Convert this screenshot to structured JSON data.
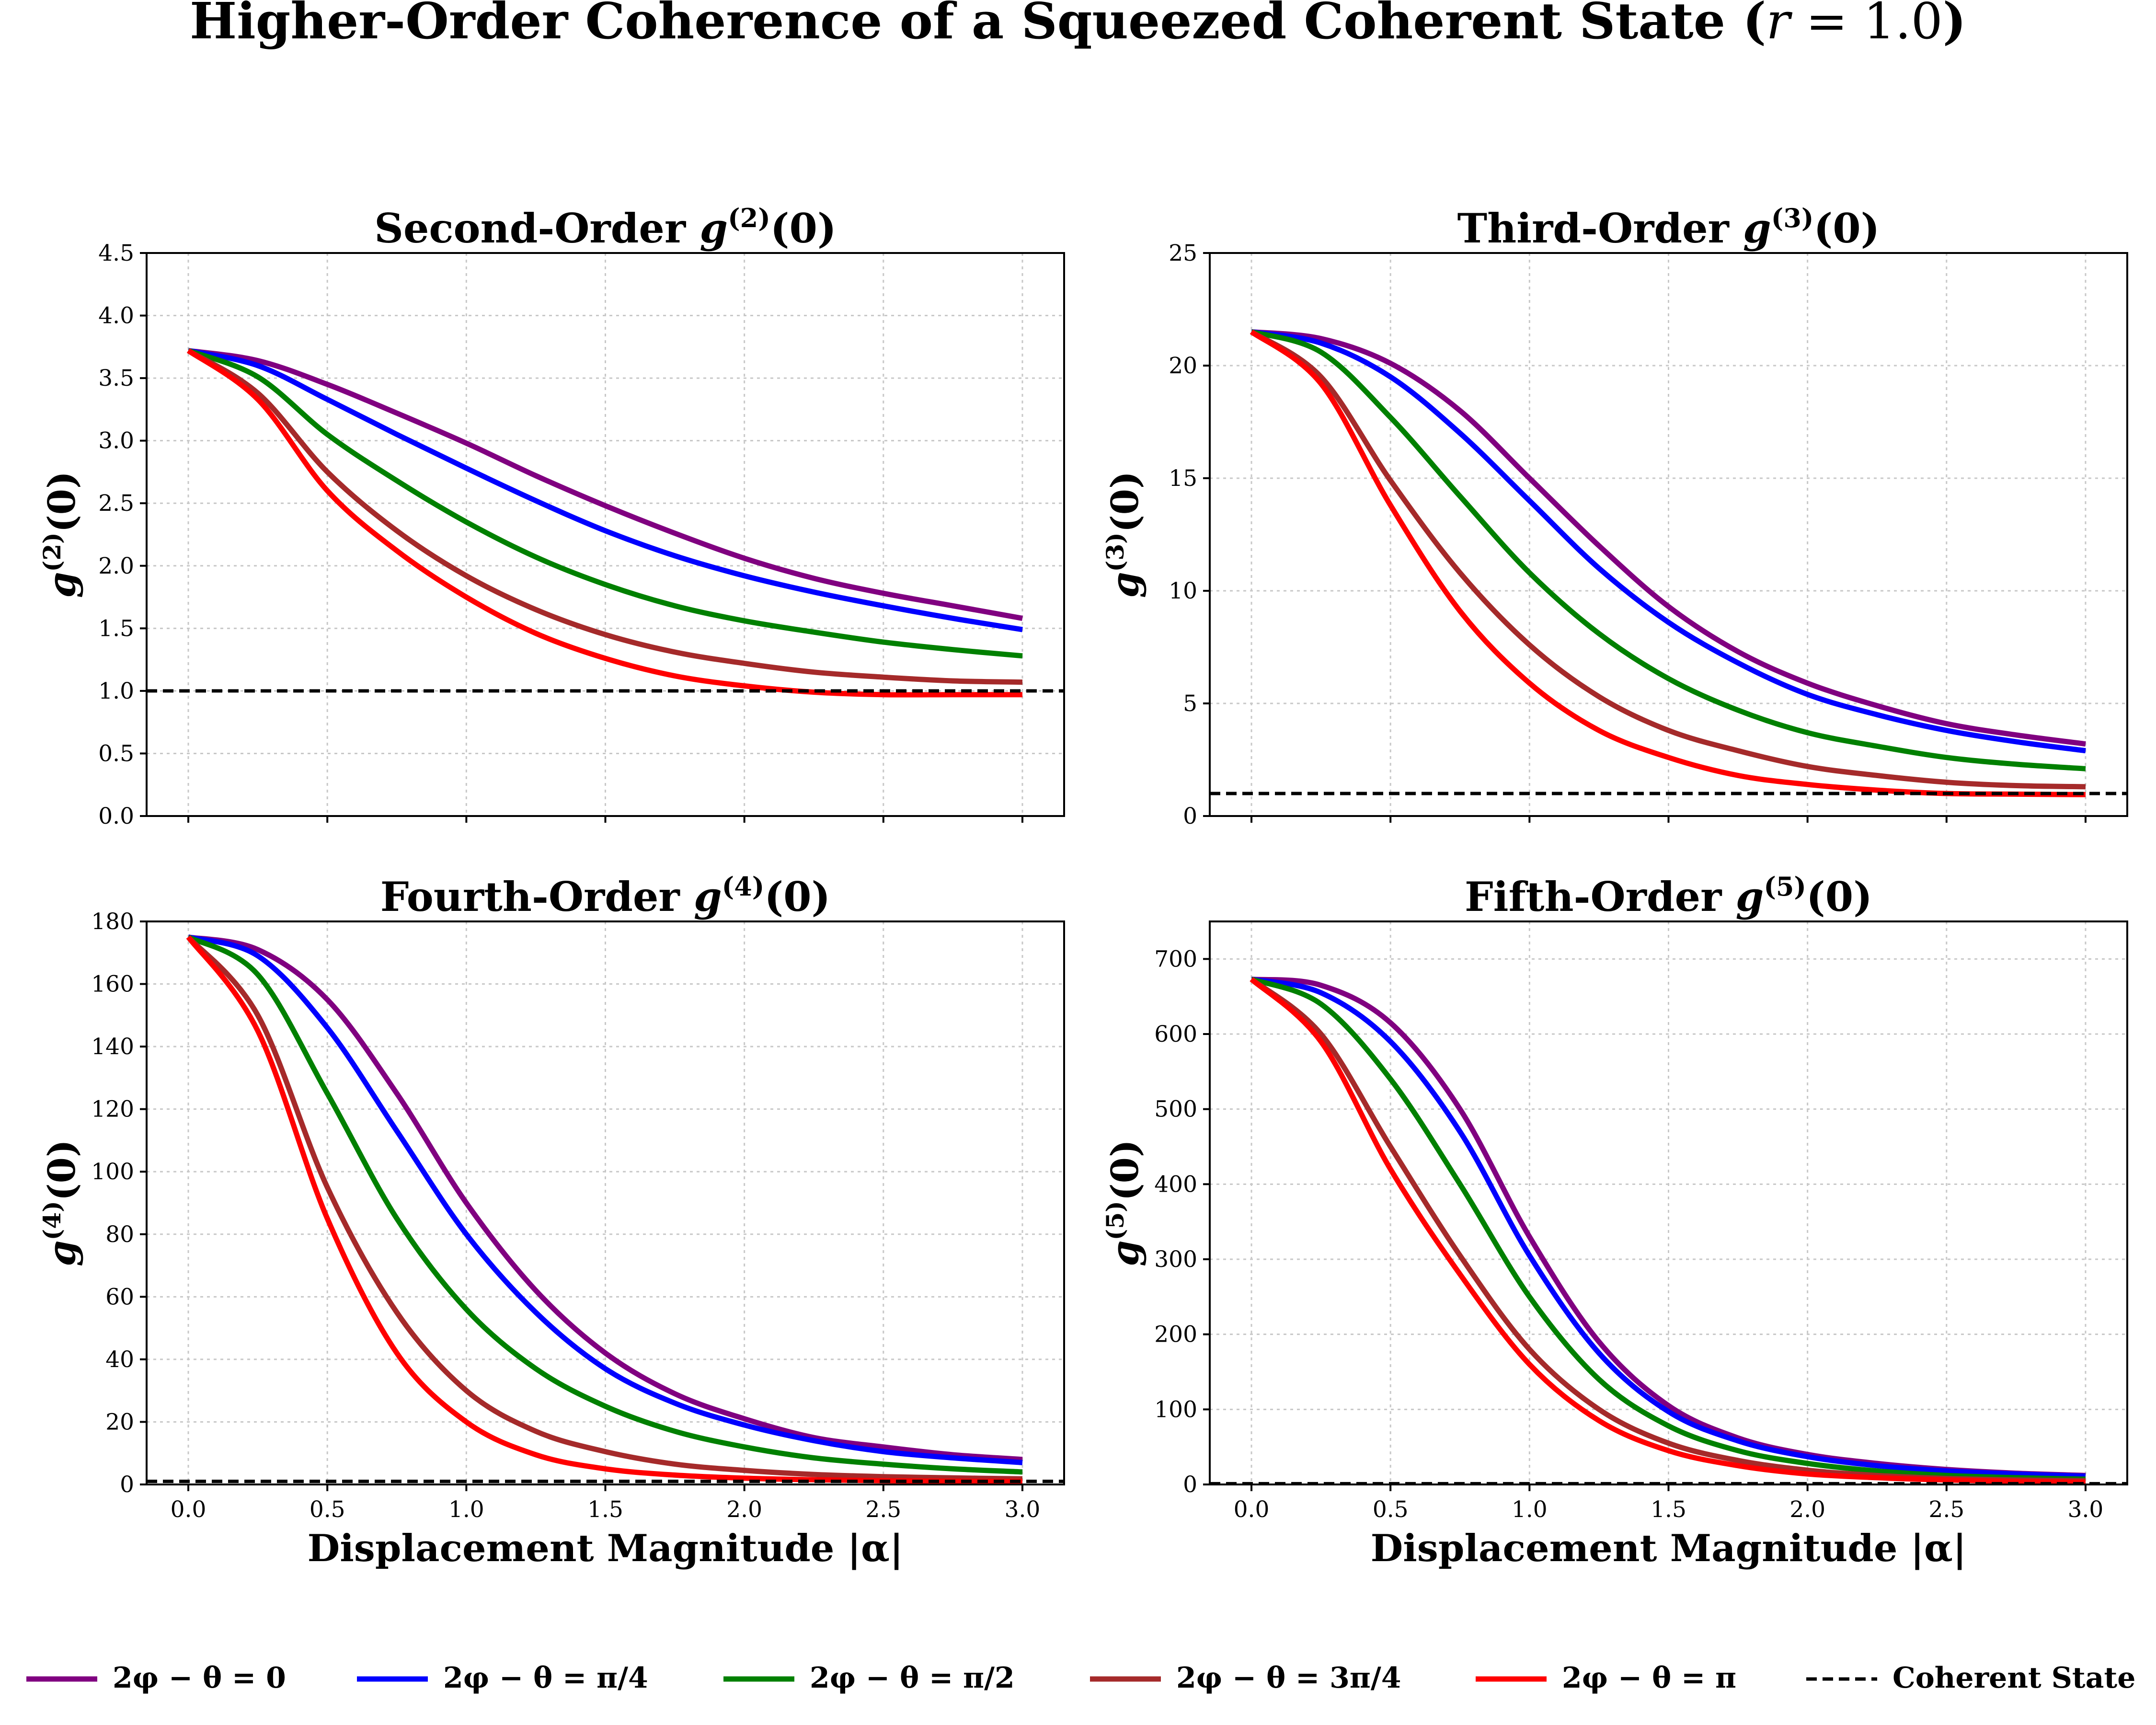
{
  "chart_data": {
    "type": "line",
    "title": "Higher-Order Coherence of a Squeezed Coherent State (r = 1.0)",
    "x": [
      0.0,
      0.25,
      0.5,
      0.75,
      1.0,
      1.25,
      1.5,
      1.75,
      2.0,
      2.25,
      2.5,
      2.75,
      3.0
    ],
    "legend": {
      "position": "bottom",
      "entries": [
        {
          "label": "2φ − θ = 0",
          "color": "#800080",
          "style": "solid"
        },
        {
          "label": "2φ − θ = π/4",
          "color": "#0000ff",
          "style": "solid"
        },
        {
          "label": "2φ − θ = π/2",
          "color": "#008000",
          "style": "solid"
        },
        {
          "label": "2φ − θ = 3π/4",
          "color": "#a52a2a",
          "style": "solid"
        },
        {
          "label": "2φ − θ = π",
          "color": "#ff0000",
          "style": "solid"
        },
        {
          "label": "Coherent State",
          "color": "#000000",
          "style": "dashed"
        }
      ]
    },
    "panels": [
      {
        "title_prefix": "Second-Order ",
        "func": "g",
        "order": "(2)",
        "arg": "(0)",
        "ylabel_func": "g",
        "ylabel_order": "(2)",
        "ylabel_arg": "(0)",
        "xlabel": "",
        "xlim": [
          -0.15,
          3.15
        ],
        "ylim": [
          0,
          4.5
        ],
        "xticks": [
          0.0,
          0.5,
          1.0,
          1.5,
          2.0,
          2.5,
          3.0
        ],
        "xtick_labels": [],
        "yticks": [
          0.0,
          0.5,
          1.0,
          1.5,
          2.0,
          2.5,
          3.0,
          3.5,
          4.0,
          4.5
        ],
        "ytick_labels": [
          "0.0",
          "0.5",
          "1.0",
          "1.5",
          "2.0",
          "2.5",
          "3.0",
          "3.5",
          "4.0",
          "4.5"
        ],
        "coherent": 1.0,
        "series": [
          {
            "name": "2φ − θ = 0",
            "values": [
              3.72,
              3.64,
              3.45,
              3.22,
              2.98,
              2.72,
              2.48,
              2.26,
              2.06,
              1.9,
              1.78,
              1.68,
              1.58
            ]
          },
          {
            "name": "2φ − θ = π/4",
            "values": [
              3.72,
              3.6,
              3.33,
              3.05,
              2.78,
              2.52,
              2.28,
              2.08,
              1.92,
              1.79,
              1.68,
              1.58,
              1.49
            ]
          },
          {
            "name": "2φ − θ = π/2",
            "values": [
              3.72,
              3.51,
              3.05,
              2.68,
              2.35,
              2.07,
              1.85,
              1.68,
              1.56,
              1.47,
              1.39,
              1.33,
              1.28
            ]
          },
          {
            "name": "2φ − θ = 3π/4",
            "values": [
              3.72,
              3.38,
              2.75,
              2.28,
              1.92,
              1.65,
              1.45,
              1.31,
              1.22,
              1.15,
              1.11,
              1.08,
              1.07
            ]
          },
          {
            "name": "2φ − θ = π",
            "values": [
              3.72,
              3.33,
              2.6,
              2.12,
              1.75,
              1.46,
              1.26,
              1.12,
              1.04,
              0.99,
              0.97,
              0.97,
              0.97
            ]
          }
        ]
      },
      {
        "title_prefix": "Third-Order ",
        "func": "g",
        "order": "(3)",
        "arg": "(0)",
        "ylabel_func": "g",
        "ylabel_order": "(3)",
        "ylabel_arg": "(0)",
        "xlabel": "",
        "xlim": [
          -0.15,
          3.15
        ],
        "ylim": [
          0,
          25
        ],
        "xticks": [
          0.0,
          0.5,
          1.0,
          1.5,
          2.0,
          2.5,
          3.0
        ],
        "xtick_labels": [],
        "yticks": [
          0,
          5,
          10,
          15,
          20,
          25
        ],
        "ytick_labels": [
          "0",
          "5",
          "10",
          "15",
          "20",
          "25"
        ],
        "coherent": 1.0,
        "series": [
          {
            "name": "2φ − θ = 0",
            "values": [
              21.5,
              21.2,
              20.1,
              18.0,
              15.0,
              12.0,
              9.3,
              7.3,
              5.9,
              4.9,
              4.1,
              3.6,
              3.2
            ]
          },
          {
            "name": "2φ − θ = π/4",
            "values": [
              21.5,
              21.0,
              19.5,
              17.0,
              14.0,
              11.0,
              8.6,
              6.8,
              5.4,
              4.5,
              3.8,
              3.3,
              2.9
            ]
          },
          {
            "name": "2φ − θ = π/2",
            "values": [
              21.5,
              20.6,
              17.7,
              14.2,
              10.8,
              8.1,
              6.1,
              4.7,
              3.7,
              3.1,
              2.6,
              2.3,
              2.1
            ]
          },
          {
            "name": "2φ − θ = 3π/4",
            "values": [
              21.5,
              19.5,
              14.9,
              10.8,
              7.6,
              5.3,
              3.8,
              2.9,
              2.2,
              1.8,
              1.5,
              1.35,
              1.3
            ]
          },
          {
            "name": "2φ − θ = π",
            "values": [
              21.5,
              19.2,
              13.8,
              9.1,
              5.9,
              3.8,
              2.6,
              1.8,
              1.4,
              1.15,
              1.0,
              0.97,
              0.95
            ]
          }
        ]
      },
      {
        "title_prefix": "Fourth-Order ",
        "func": "g",
        "order": "(4)",
        "arg": "(0)",
        "ylabel_func": "g",
        "ylabel_order": "(4)",
        "ylabel_arg": "(0)",
        "xlabel": "Displacement Magnitude |α|",
        "xlim": [
          -0.15,
          3.15
        ],
        "ylim": [
          0,
          180
        ],
        "xticks": [
          0.0,
          0.5,
          1.0,
          1.5,
          2.0,
          2.5,
          3.0
        ],
        "xtick_labels": [
          "0.0",
          "0.5",
          "1.0",
          "1.5",
          "2.0",
          "2.5",
          "3.0"
        ],
        "yticks": [
          0,
          20,
          40,
          60,
          80,
          100,
          120,
          140,
          160,
          180
        ],
        "ytick_labels": [
          "0",
          "20",
          "40",
          "60",
          "80",
          "100",
          "120",
          "140",
          "160",
          "180"
        ],
        "coherent": 1.0,
        "series": [
          {
            "name": "2φ − θ = 0",
            "values": [
              175,
              171,
              155,
              125,
              90,
              62,
              42,
              29,
              21,
              15,
              12,
              9.5,
              8
            ]
          },
          {
            "name": "2φ − θ = π/4",
            "values": [
              175,
              169,
              146,
              113,
              80,
              55,
              37,
              26,
              19,
              14,
              10.5,
              8.5,
              7
            ]
          },
          {
            "name": "2φ − θ = π/2",
            "values": [
              175,
              163,
              125,
              85,
              56,
              37,
              25,
              17,
              12,
              8.5,
              6.5,
              5,
              4
            ]
          },
          {
            "name": "2φ − θ = 3π/4",
            "values": [
              175,
              150,
              95,
              55,
              30,
              17,
              10.5,
              6.5,
              4.5,
              3.2,
              2.5,
              2.1,
              1.8
            ]
          },
          {
            "name": "2φ − θ = π",
            "values": [
              175,
              145,
              85,
              42,
              20,
              9.5,
              5,
              3,
              2,
              1.5,
              1.2,
              1.05,
              1.0
            ]
          }
        ]
      },
      {
        "title_prefix": "Fifth-Order ",
        "func": "g",
        "order": "(5)",
        "arg": "(0)",
        "ylabel_func": "g",
        "ylabel_order": "(5)",
        "ylabel_arg": "(0)",
        "xlabel": "Displacement Magnitude |α|",
        "xlim": [
          -0.15,
          3.15
        ],
        "ylim": [
          0,
          750
        ],
        "xticks": [
          0.0,
          0.5,
          1.0,
          1.5,
          2.0,
          2.5,
          3.0
        ],
        "xtick_labels": [
          "0.0",
          "0.5",
          "1.0",
          "1.5",
          "2.0",
          "2.5",
          "3.0"
        ],
        "yticks": [
          0,
          100,
          200,
          300,
          400,
          500,
          600,
          700
        ],
        "ytick_labels": [
          "0",
          "100",
          "200",
          "300",
          "400",
          "500",
          "600",
          "700"
        ],
        "coherent": 1.0,
        "series": [
          {
            "name": "2φ − θ = 0",
            "values": [
              673,
              665,
              615,
              500,
              330,
              190,
              105,
              62,
              40,
              28,
              20,
              15,
              12
            ]
          },
          {
            "name": "2φ − θ = π/4",
            "values": [
              673,
              655,
              590,
              470,
              305,
              175,
              97,
              58,
              37,
              25,
              18,
              14,
              11
            ]
          },
          {
            "name": "2φ − θ = π/2",
            "values": [
              673,
              640,
              540,
              400,
              250,
              140,
              78,
              45,
              28,
              18,
              12,
              9,
              7
            ]
          },
          {
            "name": "2φ − θ = 3π/4",
            "values": [
              673,
              600,
              450,
              305,
              180,
              100,
              55,
              32,
              19,
              12,
              8,
              6,
              5
            ]
          },
          {
            "name": "2φ − θ = π",
            "values": [
              673,
              590,
              420,
              280,
              160,
              85,
              45,
              25,
              14,
              9,
              6,
              4,
              3
            ]
          }
        ]
      }
    ]
  }
}
